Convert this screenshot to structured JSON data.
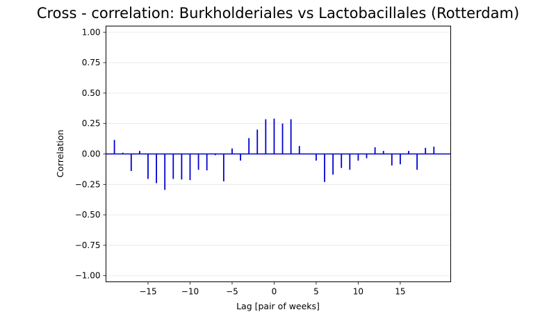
{
  "chart_data": {
    "type": "bar",
    "title": "Cross - correlation: Burkholderiales vs Lactobacillales (Rotterdam)",
    "xlabel": "Lag [pair of weeks]",
    "ylabel": "Correlation",
    "xlim": [
      -20,
      21
    ],
    "ylim": [
      -1.05,
      1.05
    ],
    "xticks": [
      -15,
      -10,
      -5,
      0,
      5,
      10,
      15
    ],
    "xtick_labels": [
      "−15",
      "−10",
      "−5",
      "0",
      "5",
      "10",
      "15"
    ],
    "yticks": [
      -1.0,
      -0.75,
      -0.5,
      -0.25,
      0.0,
      0.25,
      0.5,
      0.75,
      1.0
    ],
    "ytick_labels": [
      "−1.00",
      "−0.75",
      "−0.50",
      "−0.25",
      "0.00",
      "0.25",
      "0.50",
      "0.75",
      "1.00"
    ],
    "grid": "horizontal",
    "zero_line": true,
    "bar_color": "#0000cc",
    "zero_line_color": "#0000cc",
    "x": [
      -19,
      -18,
      -17,
      -16,
      -15,
      -14,
      -13,
      -12,
      -11,
      -10,
      -9,
      -8,
      -7,
      -6,
      -5,
      -4,
      -3,
      -2,
      -1,
      0,
      1,
      2,
      3,
      4,
      5,
      6,
      7,
      8,
      9,
      10,
      11,
      12,
      13,
      14,
      15,
      16,
      17,
      18,
      19
    ],
    "values": [
      0.115,
      0.01,
      -0.14,
      0.025,
      -0.205,
      -0.24,
      -0.295,
      -0.205,
      -0.21,
      -0.215,
      -0.13,
      -0.135,
      -0.01,
      -0.225,
      0.045,
      -0.055,
      0.13,
      0.2,
      0.285,
      0.29,
      0.25,
      0.285,
      0.065,
      0.0,
      -0.055,
      -0.23,
      -0.17,
      -0.115,
      -0.13,
      -0.055,
      -0.035,
      0.055,
      0.025,
      -0.095,
      -0.085,
      0.025,
      -0.13,
      0.05,
      0.06
    ]
  }
}
